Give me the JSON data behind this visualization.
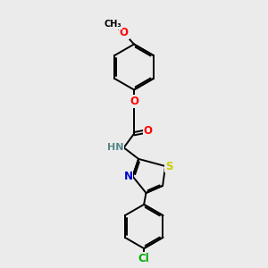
{
  "background_color": "#ebebeb",
  "atom_colors": {
    "O": "#ff0000",
    "N": "#0000cd",
    "S": "#cccc00",
    "Cl": "#00aa00",
    "C": "#000000",
    "H": "#558888"
  },
  "bond_color": "#000000",
  "bond_width": 1.4,
  "font_size": 8.5,
  "fig_width": 3.0,
  "fig_height": 3.0,
  "dpi": 100
}
